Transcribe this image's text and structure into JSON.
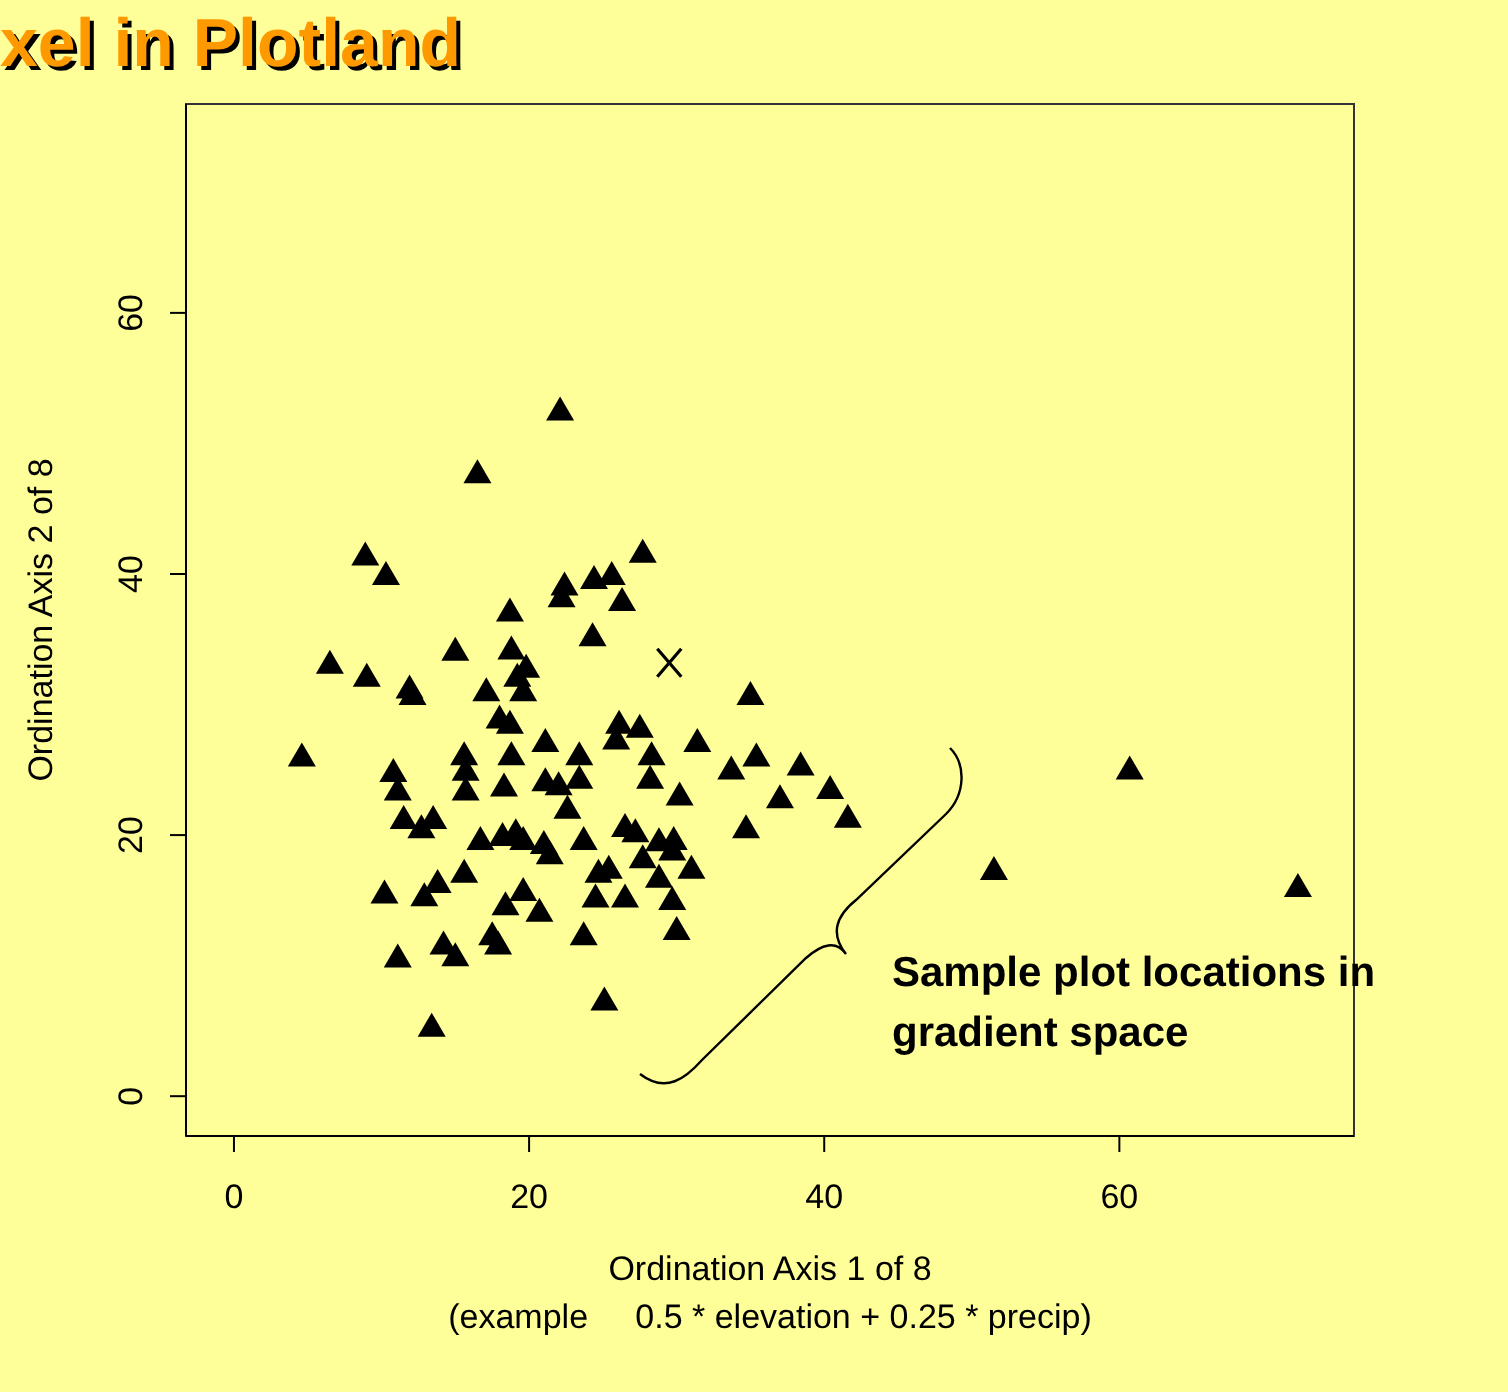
{
  "chart_data": {
    "type": "scatter",
    "title": "xel in Plotland",
    "xlabel": "Ordination Axis 1 of 8\n(example     0.5 * elevation + 0.25 * precip)",
    "ylabel": "Ordination Axis 2 of 8",
    "xlim": [
      -3.25,
      75.9
    ],
    "ylim": [
      -3.05,
      76
    ],
    "xticks": [
      0,
      20,
      40,
      60
    ],
    "yticks": [
      0,
      20,
      40,
      60
    ],
    "annotations": [
      "Sample plot locations in gradient space"
    ],
    "series": [
      {
        "type": "scatter",
        "color": "#000000",
        "marker": "triangle",
        "x": [
          4.6,
          6.5,
          8.9,
          9.0,
          10.3,
          10.2,
          10.8,
          11.1,
          11.5,
          11.1,
          11.9,
          12.1,
          12.7,
          12.9,
          13.5,
          13.4,
          14.2,
          15.0,
          13.8,
          15.0,
          15.6,
          15.7,
          15.7,
          15.6,
          16.5,
          16.7,
          17.1,
          17.5,
          17.9,
          18.0,
          18.3,
          18.2,
          18.4,
          18.7,
          18.8,
          18.7,
          18.8,
          19.2,
          19.8,
          19.6,
          19.1,
          19.6,
          19.6,
          20.7,
          21.1,
          21.1,
          21.0,
          21.4,
          22.1,
          22.4,
          22.2,
          22.0,
          22.6,
          23.4,
          23.4,
          23.7,
          23.7,
          24.3,
          24.4,
          24.5,
          24.7,
          25.1,
          25.4,
          25.6,
          25.9,
          26.1,
          26.3,
          26.5,
          26.5,
          27.2,
          27.7,
          27.5,
          27.7,
          28.2,
          28.3,
          28.8,
          28.8,
          29.8,
          29.7,
          29.7,
          30.0,
          30.2,
          31.0,
          31.4,
          33.7,
          34.7,
          35.0,
          35.4,
          37.0,
          38.4,
          40.4,
          41.6,
          51.5,
          60.7,
          72.1
        ],
        "values": [
          26.1,
          33.2,
          41.5,
          32.2,
          40.0,
          15.6,
          24.9,
          23.5,
          21.3,
          10.7,
          31.3,
          30.8,
          20.6,
          15.4,
          21.3,
          5.4,
          11.7,
          10.8,
          16.4,
          34.2,
          26.2,
          25.0,
          23.5,
          17.2,
          47.8,
          19.7,
          31.1,
          12.4,
          11.7,
          29.0,
          23.8,
          20.0,
          14.7,
          37.2,
          34.3,
          28.6,
          26.2,
          32.2,
          32.9,
          31.1,
          20.3,
          19.7,
          15.8,
          14.2,
          27.2,
          24.2,
          19.4,
          18.6,
          52.6,
          39.2,
          38.3,
          23.9,
          22.1,
          24.4,
          26.2,
          12.4,
          19.7,
          35.3,
          39.7,
          15.3,
          17.2,
          7.4,
          17.5,
          40.0,
          27.4,
          28.6,
          38.0,
          20.7,
          15.3,
          20.3,
          41.7,
          28.3,
          18.3,
          24.4,
          26.2,
          19.6,
          16.8,
          19.7,
          18.9,
          15.1,
          12.8,
          23.1,
          17.5,
          27.2,
          25.1,
          20.6,
          30.8,
          26.1,
          22.9,
          25.4,
          23.6,
          21.4,
          17.4,
          25.1,
          16.1
        ]
      },
      {
        "type": "scatter",
        "color": "#000000",
        "marker": "cross",
        "x": [
          29.5
        ],
        "values": [
          33.2
        ]
      }
    ]
  }
}
